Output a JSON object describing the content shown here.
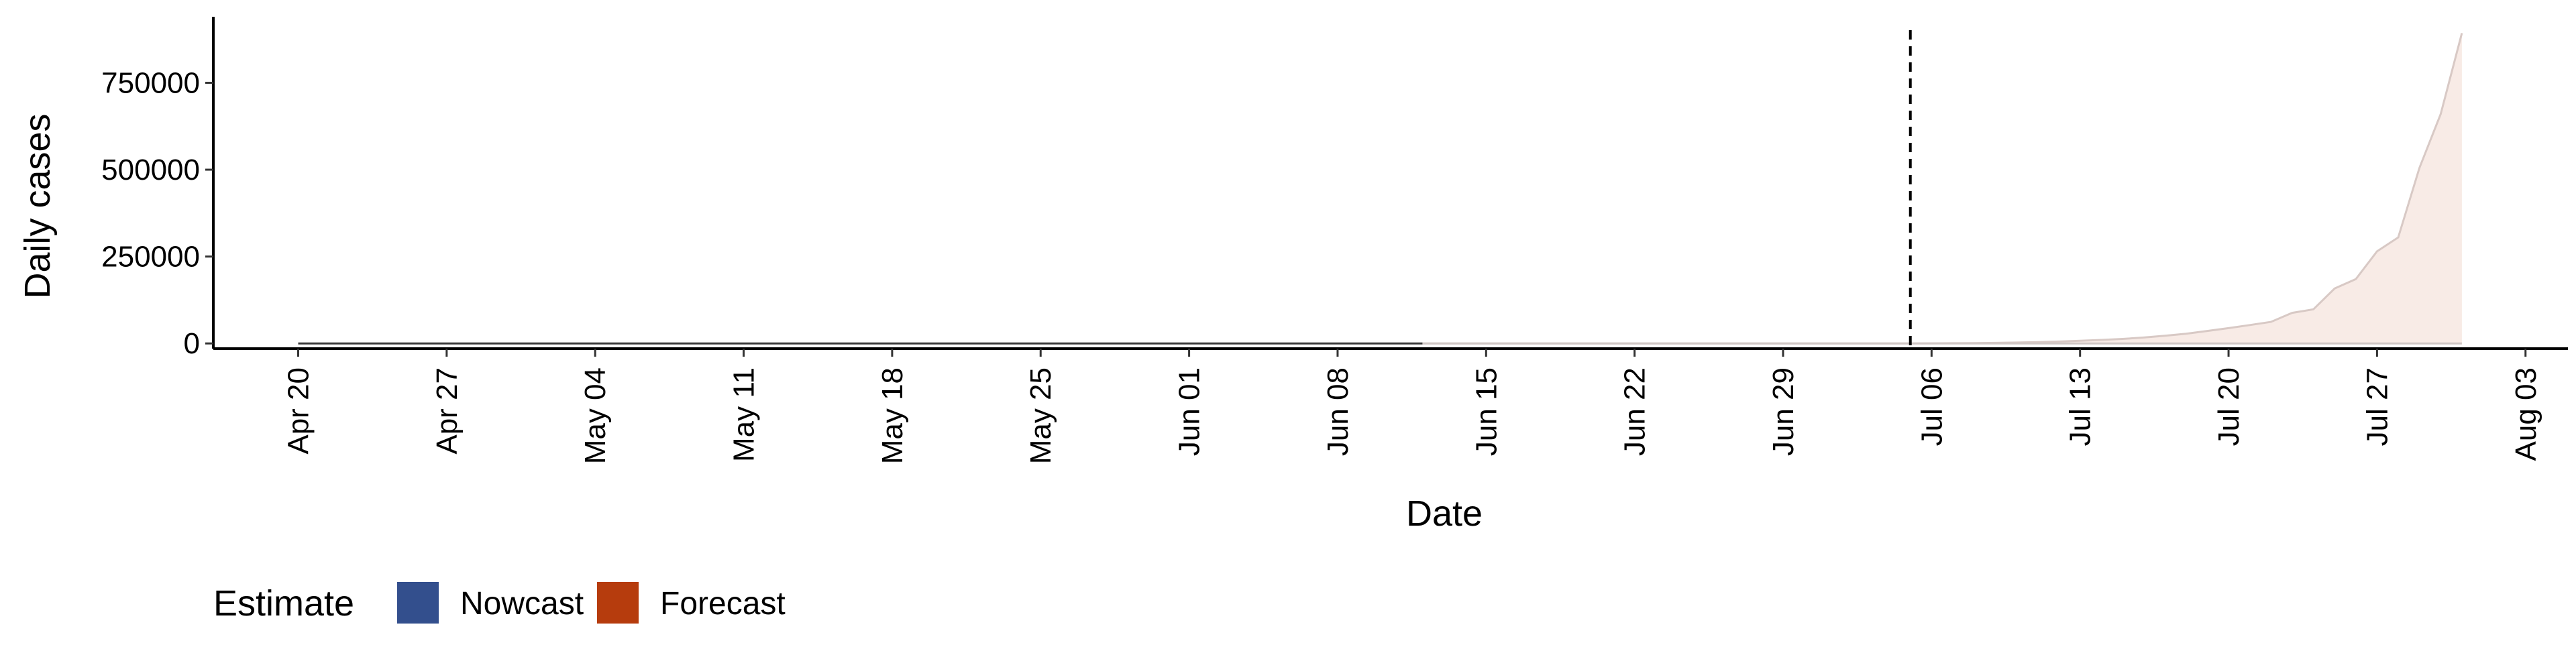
{
  "chart_data": {
    "type": "area",
    "xlabel": "Date",
    "ylabel": "Daily cases",
    "xlim": [
      "2020-04-16",
      "2020-08-05"
    ],
    "ylim": [
      -15000,
      940000
    ],
    "x_ticks": [
      "2020-04-20",
      "2020-04-27",
      "2020-05-04",
      "2020-05-11",
      "2020-05-18",
      "2020-05-25",
      "2020-06-01",
      "2020-06-08",
      "2020-06-15",
      "2020-06-22",
      "2020-06-29",
      "2020-07-06",
      "2020-07-13",
      "2020-07-20",
      "2020-07-27",
      "2020-08-03"
    ],
    "x_tick_labels": [
      "Apr 20",
      "Apr 27",
      "May 04",
      "May 11",
      "May 18",
      "May 25",
      "Jun 01",
      "Jun 08",
      "Jun 15",
      "Jun 22",
      "Jun 29",
      "Jul 06",
      "Jul 13",
      "Jul 20",
      "Jul 27",
      "Aug 03"
    ],
    "y_ticks": [
      0,
      250000,
      500000,
      750000
    ],
    "y_tick_labels": [
      "0",
      "250000",
      "500000",
      "750000"
    ],
    "vline_date": "2020-07-05",
    "grid": false,
    "legend": {
      "title": "Estimate",
      "position": "bottom-left",
      "entries": [
        {
          "label": "Nowcast",
          "color": "#334f8d"
        },
        {
          "label": "Forecast",
          "color": "#b63c0d"
        }
      ]
    },
    "series": [
      {
        "name": "Nowcast",
        "color": "#334f8d",
        "x_start": "2020-04-20",
        "x_end": "2020-06-12",
        "median": 0,
        "upper": 0
      },
      {
        "name": "Forecast",
        "color": "#b63c0d",
        "dates": [
          "2020-06-12",
          "2020-07-05",
          "2020-07-06",
          "2020-07-07",
          "2020-07-08",
          "2020-07-09",
          "2020-07-10",
          "2020-07-11",
          "2020-07-12",
          "2020-07-13",
          "2020-07-14",
          "2020-07-15",
          "2020-07-16",
          "2020-07-17",
          "2020-07-18",
          "2020-07-19",
          "2020-07-20",
          "2020-07-21",
          "2020-07-22",
          "2020-07-23",
          "2020-07-24",
          "2020-07-25",
          "2020-07-26",
          "2020-07-27",
          "2020-07-28",
          "2020-07-29",
          "2020-07-30",
          "2020-07-31"
        ],
        "upper": [
          0,
          0,
          300,
          600,
          900,
          1500,
          2500,
          4000,
          5500,
          7500,
          10000,
          13000,
          17000,
          22000,
          28000,
          36000,
          44000,
          53000,
          62000,
          88000,
          98000,
          158000,
          185000,
          265000,
          305000,
          505000,
          660000,
          893000
        ],
        "lower": [
          0,
          0,
          0,
          0,
          0,
          0,
          0,
          0,
          0,
          0,
          0,
          0,
          0,
          0,
          0,
          0,
          0,
          0,
          0,
          0,
          0,
          0,
          0,
          0,
          0,
          0,
          0,
          0
        ]
      }
    ]
  }
}
